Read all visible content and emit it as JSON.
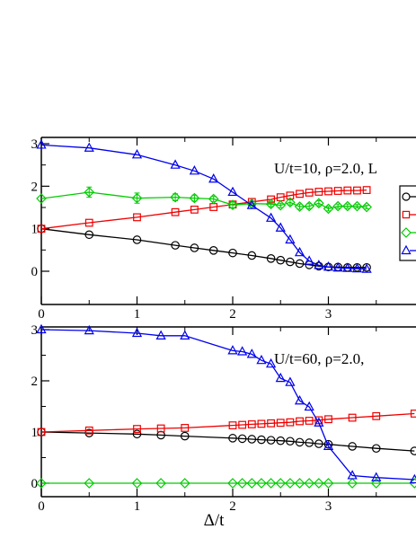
{
  "chart_data": [
    {
      "type": "line",
      "annotation": "U/t=10, ρ=2.0, L",
      "xlabel": "",
      "ylabel": "",
      "xlim": [
        0,
        3.9
      ],
      "ylim": [
        -0.2,
        3.0
      ],
      "xticks": [
        "0",
        "1",
        "2",
        "3"
      ],
      "yticks": [
        "0",
        "1",
        "2",
        "3"
      ],
      "legend": {
        "placement": "right",
        "visible": "partially cut off"
      },
      "series": [
        {
          "color": "#000000",
          "marker": "circle",
          "x": [
            0,
            0.5,
            1,
            1.4,
            1.6,
            1.8,
            2,
            2.2,
            2.4,
            2.5,
            2.6,
            2.7,
            2.8,
            2.9,
            3.0,
            3.1,
            3.2,
            3.3,
            3.4
          ],
          "y": [
            1.0,
            0.86,
            0.74,
            0.61,
            0.55,
            0.49,
            0.43,
            0.37,
            0.3,
            0.26,
            0.22,
            0.18,
            0.15,
            0.12,
            0.1,
            0.1,
            0.09,
            0.09,
            0.09
          ]
        },
        {
          "color": "#ee0000",
          "marker": "square",
          "x": [
            0,
            0.5,
            1,
            1.4,
            1.6,
            1.8,
            2,
            2.2,
            2.4,
            2.5,
            2.6,
            2.7,
            2.8,
            2.9,
            3.0,
            3.1,
            3.2,
            3.3,
            3.4
          ],
          "y": [
            1.0,
            1.14,
            1.27,
            1.39,
            1.45,
            1.51,
            1.57,
            1.63,
            1.69,
            1.74,
            1.78,
            1.82,
            1.85,
            1.87,
            1.88,
            1.89,
            1.9,
            1.9,
            1.91
          ]
        },
        {
          "color": "#00cc00",
          "marker": "diamond",
          "x": [
            0,
            0.5,
            1,
            1.4,
            1.6,
            1.8,
            2,
            2.2,
            2.4,
            2.5,
            2.6,
            2.7,
            2.8,
            2.9,
            3.0,
            3.1,
            3.2,
            3.3,
            3.4
          ],
          "y": [
            1.71,
            1.86,
            1.72,
            1.74,
            1.72,
            1.7,
            1.56,
            1.59,
            1.58,
            1.55,
            1.62,
            1.52,
            1.53,
            1.6,
            1.47,
            1.53,
            1.53,
            1.53,
            1.51
          ],
          "error": [
            0.0,
            0.12,
            0.12,
            0.08,
            0.07,
            0.06,
            0.07,
            0.05,
            0.06,
            0.05,
            0.06,
            0.06,
            0.06,
            0.06,
            0.05,
            0.05,
            0.05,
            0.04,
            0.04
          ]
        },
        {
          "color": "#0000ee",
          "marker": "triangle",
          "x": [
            0,
            0.5,
            1,
            1.4,
            1.6,
            1.8,
            2,
            2.2,
            2.4,
            2.5,
            2.6,
            2.7,
            2.8,
            2.9,
            3.0,
            3.1,
            3.2,
            3.3,
            3.4
          ],
          "y": [
            2.97,
            2.9,
            2.74,
            2.5,
            2.36,
            2.17,
            1.86,
            1.55,
            1.25,
            1.02,
            0.74,
            0.44,
            0.24,
            0.14,
            0.1,
            0.08,
            0.07,
            0.06,
            0.05
          ]
        }
      ]
    },
    {
      "type": "line",
      "annotation": "U/t=60, ρ=2.0,",
      "xlabel": "Δ/t",
      "ylabel": "",
      "xlim": [
        0,
        3.9
      ],
      "ylim": [
        -0.15,
        3.0
      ],
      "xticks": [
        "0",
        "1",
        "2",
        "3"
      ],
      "yticks": [
        "0",
        "1",
        "2",
        "3"
      ],
      "series": [
        {
          "color": "#000000",
          "marker": "circle",
          "x": [
            0,
            0.5,
            1,
            1.25,
            1.5,
            2,
            2.1,
            2.2,
            2.3,
            2.4,
            2.5,
            2.6,
            2.7,
            2.8,
            2.9,
            3.0,
            3.25,
            3.5,
            3.9
          ],
          "y": [
            1.0,
            0.98,
            0.96,
            0.94,
            0.92,
            0.88,
            0.87,
            0.86,
            0.85,
            0.84,
            0.83,
            0.82,
            0.8,
            0.79,
            0.77,
            0.76,
            0.72,
            0.68,
            0.63
          ]
        },
        {
          "color": "#ee0000",
          "marker": "square",
          "x": [
            0,
            0.5,
            1,
            1.25,
            1.5,
            2,
            2.1,
            2.2,
            2.3,
            2.4,
            2.5,
            2.6,
            2.7,
            2.8,
            2.9,
            3.0,
            3.25,
            3.5,
            3.9
          ],
          "y": [
            1.0,
            1.03,
            1.06,
            1.07,
            1.08,
            1.13,
            1.14,
            1.15,
            1.16,
            1.17,
            1.18,
            1.19,
            1.21,
            1.22,
            1.23,
            1.25,
            1.28,
            1.31,
            1.36
          ]
        },
        {
          "color": "#00cc00",
          "marker": "diamond",
          "x": [
            0,
            0.5,
            1,
            1.25,
            1.5,
            2,
            2.1,
            2.2,
            2.3,
            2.4,
            2.5,
            2.6,
            2.7,
            2.8,
            2.9,
            3.0,
            3.25,
            3.5,
            3.9
          ],
          "y": [
            0.0,
            0.0,
            0.0,
            0.0,
            0.0,
            0.0,
            0.0,
            0.0,
            0.0,
            0.0,
            0.0,
            0.0,
            0.0,
            0.0,
            0.0,
            0.0,
            0.0,
            0.0,
            0.0
          ]
        },
        {
          "color": "#0000ee",
          "marker": "triangle",
          "x": [
            0,
            0.5,
            1,
            1.25,
            1.5,
            2,
            2.1,
            2.2,
            2.3,
            2.4,
            2.5,
            2.6,
            2.7,
            2.8,
            2.9,
            3.0,
            3.25,
            3.5,
            3.9
          ],
          "y": [
            3.0,
            2.98,
            2.93,
            2.88,
            2.88,
            2.59,
            2.57,
            2.52,
            2.4,
            2.33,
            2.05,
            1.97,
            1.61,
            1.49,
            1.18,
            0.72,
            0.15,
            0.11,
            0.07
          ]
        }
      ]
    }
  ]
}
